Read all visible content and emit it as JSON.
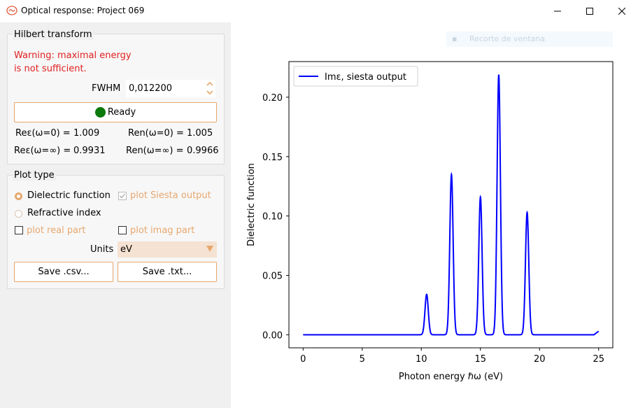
{
  "window": {
    "title": "Optical response: Project 069",
    "icon": "app-icon"
  },
  "hilbert": {
    "group_title": "Hilbert transform",
    "warning_line1": "Warning: maximal energy",
    "warning_line2": "is not sufficient.",
    "fwhm_label": "FWHM",
    "fwhm_value": "0,012200",
    "ready_label": "Ready",
    "re_eps_0": "Reε(ω=0) =",
    "re_eps_0_val": "1.009",
    "re_n_0": "Ren(ω=0) =",
    "re_n_0_val": "1.005",
    "re_eps_inf": "Reε(ω=∞) =",
    "re_eps_inf_val": "0.9931",
    "re_n_inf": "Ren(ω=∞) =",
    "re_n_inf_val": "0.9966"
  },
  "plot_type": {
    "group_title": "Plot type",
    "dielectric_label": "Dielectric function",
    "refractive_label": "Refractive index",
    "plot_siesta_label": "plot Siesta output",
    "plot_real_label": "plot real part",
    "plot_imag_label": "plot imag part",
    "units_label": "Units",
    "units_value": "eV",
    "save_csv": "Save .csv...",
    "save_txt": "Save .txt..."
  },
  "ghost_toolbar": {
    "label": "Recorte de ventana"
  },
  "colors": {
    "accent": "#e6a870",
    "warning": "#e02020",
    "line": "#0000ff",
    "ready_dot": "#0a7a0a"
  },
  "chart_data": {
    "type": "line",
    "xlabel": "Photon energy ℏω (eV)",
    "ylabel": "Dielectric function",
    "xlim": [
      -1.2,
      26.2
    ],
    "ylim": [
      -0.011,
      0.23
    ],
    "xticks": [
      0,
      5,
      10,
      15,
      20,
      25
    ],
    "yticks": [
      0.0,
      0.05,
      0.1,
      0.15,
      0.2
    ],
    "ytick_labels": [
      "0.00",
      "0.05",
      "0.10",
      "0.15",
      "0.20"
    ],
    "legend": "top-left",
    "series": [
      {
        "name": "Imε, siesta output",
        "color": "#0000ff",
        "baseline": 0.0,
        "peaks": [
          {
            "x": 10.45,
            "y": 0.034
          },
          {
            "x": 12.55,
            "y": 0.135
          },
          {
            "x": 15.0,
            "y": 0.116
          },
          {
            "x": 16.55,
            "y": 0.219
          },
          {
            "x": 18.95,
            "y": 0.103
          }
        ],
        "tail": {
          "x": 25.0,
          "y": 0.003
        }
      }
    ]
  }
}
